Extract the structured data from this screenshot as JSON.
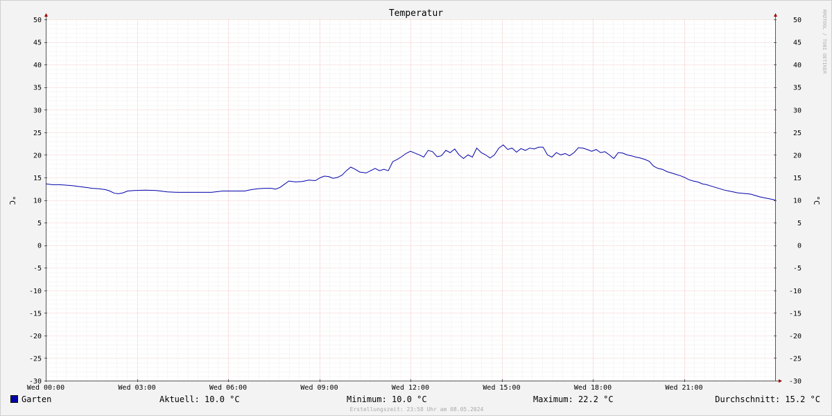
{
  "chart_data": {
    "type": "line",
    "title": "Temperatur",
    "ylabel": "°C",
    "ylim": [
      -30,
      50
    ],
    "y_ticks": [
      50,
      45,
      40,
      35,
      30,
      25,
      20,
      15,
      10,
      5,
      0,
      -5,
      -10,
      -15,
      -20,
      -25,
      -30
    ],
    "x_range_hours": [
      0,
      24
    ],
    "x_ticks": [
      {
        "hour": 0,
        "label": "Wed 00:00"
      },
      {
        "hour": 3,
        "label": "Wed 03:00"
      },
      {
        "hour": 6,
        "label": "Wed 06:00"
      },
      {
        "hour": 9,
        "label": "Wed 09:00"
      },
      {
        "hour": 12,
        "label": "Wed 12:00"
      },
      {
        "hour": 15,
        "label": "Wed 15:00"
      },
      {
        "hour": 18,
        "label": "Wed 18:00"
      },
      {
        "hour": 21,
        "label": "Wed 21:00"
      }
    ],
    "grid": true,
    "series": [
      {
        "name": "Garten",
        "color": "#0000aa",
        "points": [
          [
            0.0,
            13.6
          ],
          [
            0.3,
            13.4
          ],
          [
            0.6,
            13.4
          ],
          [
            0.9,
            13.3
          ],
          [
            1.2,
            13.2
          ],
          [
            1.5,
            13.0
          ],
          [
            1.8,
            12.8
          ],
          [
            2.1,
            12.6
          ],
          [
            2.4,
            12.5
          ],
          [
            2.7,
            12.3
          ],
          [
            2.9,
            12.0
          ],
          [
            3.1,
            11.5
          ],
          [
            3.3,
            11.4
          ],
          [
            3.5,
            11.6
          ],
          [
            3.7,
            12.0
          ],
          [
            4.0,
            12.1
          ],
          [
            4.5,
            12.2
          ],
          [
            5.0,
            12.1
          ],
          [
            5.5,
            11.8
          ],
          [
            6.0,
            11.7
          ],
          [
            6.5,
            11.7
          ],
          [
            7.0,
            11.7
          ],
          [
            7.5,
            11.7
          ],
          [
            8.0,
            12.0
          ],
          [
            8.5,
            12.0
          ],
          [
            9.0,
            12.0
          ],
          [
            9.3,
            12.3
          ],
          [
            9.6,
            12.5
          ],
          [
            9.9,
            12.6
          ],
          [
            10.2,
            12.6
          ],
          [
            10.4,
            12.4
          ],
          [
            10.6,
            12.8
          ],
          [
            10.8,
            13.5
          ],
          [
            11.0,
            14.2
          ],
          [
            11.3,
            14.0
          ],
          [
            11.6,
            14.1
          ],
          [
            11.9,
            14.4
          ],
          [
            12.2,
            14.3
          ],
          [
            12.4,
            14.9
          ],
          [
            12.6,
            15.3
          ],
          [
            12.8,
            15.2
          ],
          [
            13.0,
            14.8
          ],
          [
            13.2,
            15.0
          ],
          [
            13.4,
            15.5
          ],
          [
            13.6,
            16.5
          ],
          [
            13.8,
            17.3
          ],
          [
            14.0,
            16.8
          ],
          [
            14.2,
            16.2
          ],
          [
            14.5,
            16.0
          ],
          [
            14.7,
            16.5
          ],
          [
            14.9,
            17.0
          ],
          [
            15.1,
            16.5
          ],
          [
            15.3,
            16.8
          ],
          [
            15.5,
            16.5
          ],
          [
            15.7,
            18.5
          ],
          [
            15.9,
            19.0
          ],
          [
            16.1,
            19.6
          ],
          [
            16.3,
            20.3
          ],
          [
            16.5,
            20.8
          ],
          [
            16.7,
            20.4
          ],
          [
            16.9,
            20.0
          ],
          [
            17.1,
            19.5
          ],
          [
            17.3,
            21.0
          ],
          [
            17.5,
            20.7
          ],
          [
            17.7,
            19.6
          ],
          [
            17.9,
            19.8
          ],
          [
            18.1,
            21.0
          ],
          [
            18.3,
            20.5
          ],
          [
            18.5,
            21.3
          ],
          [
            18.7,
            20.0
          ],
          [
            18.9,
            19.2
          ],
          [
            19.1,
            20.0
          ],
          [
            19.3,
            19.5
          ],
          [
            19.5,
            21.5
          ],
          [
            19.7,
            20.5
          ],
          [
            19.9,
            20.0
          ],
          [
            20.1,
            19.3
          ],
          [
            20.3,
            20.0
          ],
          [
            20.5,
            21.5
          ],
          [
            20.7,
            22.2
          ],
          [
            20.9,
            21.2
          ],
          [
            21.1,
            21.5
          ],
          [
            21.3,
            20.6
          ],
          [
            21.5,
            21.4
          ],
          [
            21.7,
            21.0
          ],
          [
            21.9,
            21.5
          ],
          [
            22.1,
            21.3
          ],
          [
            22.3,
            21.7
          ],
          [
            22.5,
            21.7
          ],
          [
            22.7,
            20.0
          ],
          [
            22.9,
            19.5
          ],
          [
            23.1,
            20.5
          ],
          [
            23.3,
            20.0
          ],
          [
            23.5,
            20.3
          ],
          [
            23.7,
            19.8
          ],
          [
            23.9,
            20.5
          ],
          [
            24.1,
            21.6
          ],
          [
            24.3,
            21.5
          ],
          [
            24.5,
            21.2
          ],
          [
            24.7,
            20.8
          ],
          [
            24.9,
            21.2
          ],
          [
            25.1,
            20.5
          ],
          [
            25.3,
            20.7
          ],
          [
            25.5,
            20.0
          ],
          [
            25.7,
            19.2
          ],
          [
            25.9,
            20.5
          ],
          [
            26.1,
            20.4
          ],
          [
            26.3,
            20.0
          ],
          [
            26.5,
            19.8
          ],
          [
            26.7,
            19.5
          ],
          [
            26.9,
            19.3
          ],
          [
            27.1,
            19.0
          ],
          [
            27.3,
            18.6
          ],
          [
            27.5,
            17.5
          ],
          [
            27.7,
            17.0
          ],
          [
            27.9,
            16.8
          ],
          [
            28.1,
            16.3
          ],
          [
            28.3,
            16.0
          ],
          [
            28.5,
            15.7
          ],
          [
            28.7,
            15.4
          ],
          [
            28.9,
            15.0
          ],
          [
            29.1,
            14.5
          ],
          [
            29.3,
            14.2
          ],
          [
            29.5,
            14.0
          ],
          [
            29.7,
            13.6
          ],
          [
            29.9,
            13.4
          ],
          [
            30.1,
            13.1
          ],
          [
            30.3,
            12.8
          ],
          [
            30.5,
            12.5
          ],
          [
            30.7,
            12.2
          ],
          [
            30.9,
            12.0
          ],
          [
            31.1,
            11.8
          ],
          [
            31.3,
            11.6
          ],
          [
            31.5,
            11.5
          ],
          [
            31.7,
            11.4
          ],
          [
            31.9,
            11.3
          ],
          [
            32.1,
            11.0
          ],
          [
            32.3,
            10.7
          ],
          [
            32.5,
            10.5
          ],
          [
            32.7,
            10.3
          ],
          [
            32.9,
            10.1
          ],
          [
            33.0,
            10.0
          ]
        ]
      }
    ],
    "legend": {
      "name": "Garten",
      "current": "Aktuell: 10.0 °C",
      "minimum": "Minimum: 10.0 °C",
      "maximum": "Maximum: 22.2 °C",
      "average": "Durchschnitt: 15.2 °C"
    },
    "watermark": "RRDTOOL / TOBI OETIKER",
    "footer": "Erstellungszeit: 23:58 Uhr am 08.05.2024"
  }
}
